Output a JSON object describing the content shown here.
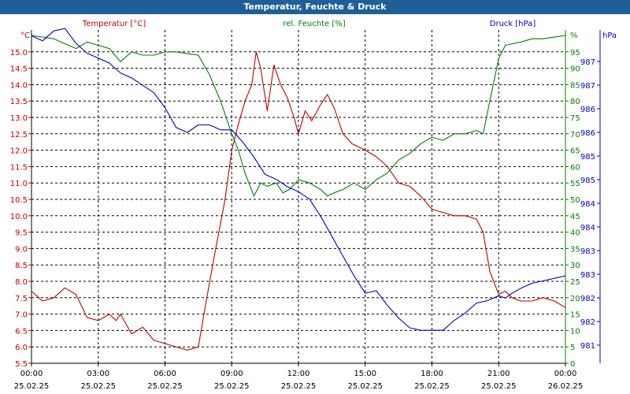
{
  "window": {
    "title": "Temperatur, Feuchte & Druck"
  },
  "colors": {
    "temperature": "#c00000",
    "humidity": "#008000",
    "pressure": "#0000c0",
    "titlebar": "#1f5f98",
    "grid": "#000000"
  },
  "chart_data": {
    "type": "line",
    "title": "Temperatur, Feuchte & Druck",
    "grid": true,
    "axes": {
      "temperature": {
        "label": "Temperatur [°C]",
        "unit": "°C",
        "range": [
          5.5,
          15.5
        ],
        "ticks": [
          "15.0",
          "14.5",
          "14.0",
          "13.5",
          "13.0",
          "12.5",
          "12.0",
          "11.5",
          "11.0",
          "10.5",
          "10.0",
          "9.5",
          "9.0",
          "8.5",
          "8.0",
          "7.5",
          "7.0",
          "6.5",
          "6.0",
          "5.5"
        ]
      },
      "humidity": {
        "label": "rel. Feuchte [%]",
        "unit": "%",
        "range": [
          0,
          100
        ],
        "ticks": [
          "95",
          "90",
          "85",
          "80",
          "75",
          "70",
          "65",
          "60",
          "55",
          "50",
          "45",
          "40",
          "35",
          "30",
          "25",
          "20",
          "15",
          "10",
          "5",
          "0"
        ]
      },
      "pressure": {
        "label": "Druck [hPa]",
        "unit": "hPa",
        "ticks": [
          "987",
          "987",
          "986",
          "986",
          "985",
          "985",
          "984",
          "984",
          "983",
          "983",
          "982",
          "982",
          "981"
        ]
      }
    },
    "x_ticks": [
      {
        "time": "00:00",
        "date": "25.02.25"
      },
      {
        "time": "03:00",
        "date": "25.02.25"
      },
      {
        "time": "06:00",
        "date": "25.02.25"
      },
      {
        "time": "09:00",
        "date": "25.02.25"
      },
      {
        "time": "12:00",
        "date": "25.02.25"
      },
      {
        "time": "15:00",
        "date": "25.02.25"
      },
      {
        "time": "18:00",
        "date": "25.02.25"
      },
      {
        "time": "21:00",
        "date": "25.02.25"
      },
      {
        "time": "00:00",
        "date": "26.02.25"
      }
    ],
    "series": [
      {
        "name": "Temperatur [°C]",
        "axis": "temperature",
        "points": [
          [
            0,
            7.7
          ],
          [
            0.5,
            7.4
          ],
          [
            1,
            7.5
          ],
          [
            1.5,
            7.8
          ],
          [
            2,
            7.6
          ],
          [
            2.5,
            6.9
          ],
          [
            3,
            6.8
          ],
          [
            3.5,
            7.0
          ],
          [
            3.8,
            6.8
          ],
          [
            4,
            7.0
          ],
          [
            4.5,
            6.4
          ],
          [
            5,
            6.6
          ],
          [
            5.5,
            6.2
          ],
          [
            6,
            6.1
          ],
          [
            7,
            5.9
          ],
          [
            7.5,
            6.0
          ],
          [
            7.8,
            7.2
          ],
          [
            8.2,
            8.7
          ],
          [
            8.7,
            10.5
          ],
          [
            9,
            12.0
          ],
          [
            9.3,
            12.8
          ],
          [
            9.6,
            13.5
          ],
          [
            9.9,
            14.0
          ],
          [
            10.1,
            15.0
          ],
          [
            10.3,
            14.5
          ],
          [
            10.6,
            13.2
          ],
          [
            10.9,
            14.6
          ],
          [
            11.2,
            14.0
          ],
          [
            11.5,
            13.6
          ],
          [
            11.8,
            13.0
          ],
          [
            12,
            12.5
          ],
          [
            12.3,
            13.2
          ],
          [
            12.6,
            12.9
          ],
          [
            13,
            13.4
          ],
          [
            13.3,
            13.7
          ],
          [
            13.6,
            13.3
          ],
          [
            14,
            12.5
          ],
          [
            14.4,
            12.2
          ],
          [
            15,
            12.0
          ],
          [
            15.5,
            11.8
          ],
          [
            16,
            11.5
          ],
          [
            16.5,
            11.0
          ],
          [
            17,
            10.9
          ],
          [
            17.5,
            10.6
          ],
          [
            18,
            10.2
          ],
          [
            18.5,
            10.1
          ],
          [
            19,
            10.0
          ],
          [
            19.5,
            10.0
          ],
          [
            20,
            9.9
          ],
          [
            20.3,
            9.5
          ],
          [
            20.6,
            8.3
          ],
          [
            21,
            7.6
          ],
          [
            21.3,
            7.7
          ],
          [
            21.6,
            7.5
          ],
          [
            22,
            7.4
          ],
          [
            22.5,
            7.4
          ],
          [
            23,
            7.5
          ],
          [
            23.5,
            7.4
          ],
          [
            24,
            7.2
          ]
        ]
      },
      {
        "name": "rel. Feuchte [%]",
        "axis": "humidity",
        "points": [
          [
            0,
            100
          ],
          [
            1,
            99
          ],
          [
            2,
            96
          ],
          [
            2.5,
            98
          ],
          [
            3,
            97
          ],
          [
            3.5,
            96
          ],
          [
            4,
            92
          ],
          [
            4.5,
            95
          ],
          [
            5,
            94
          ],
          [
            5.5,
            94
          ],
          [
            6,
            95
          ],
          [
            6.5,
            95
          ],
          [
            7,
            94.5
          ],
          [
            7.5,
            94
          ],
          [
            8,
            88
          ],
          [
            8.5,
            80
          ],
          [
            9,
            70
          ],
          [
            9.3,
            65
          ],
          [
            9.6,
            58
          ],
          [
            10,
            51
          ],
          [
            10.3,
            55
          ],
          [
            10.6,
            54
          ],
          [
            11,
            55
          ],
          [
            11.3,
            52
          ],
          [
            11.6,
            53
          ],
          [
            12,
            56
          ],
          [
            12.5,
            55
          ],
          [
            13,
            53
          ],
          [
            13.3,
            51
          ],
          [
            13.6,
            52
          ],
          [
            14,
            53
          ],
          [
            14.5,
            55
          ],
          [
            15,
            53
          ],
          [
            15.5,
            56
          ],
          [
            16,
            58
          ],
          [
            16.5,
            62
          ],
          [
            17,
            64
          ],
          [
            17.5,
            67
          ],
          [
            18,
            69
          ],
          [
            18.5,
            68
          ],
          [
            19,
            70
          ],
          [
            19.5,
            70
          ],
          [
            20,
            71
          ],
          [
            20.3,
            70
          ],
          [
            20.6,
            80
          ],
          [
            21,
            93
          ],
          [
            21.3,
            97
          ],
          [
            22,
            98
          ],
          [
            22.5,
            99
          ],
          [
            23,
            99
          ],
          [
            23.5,
            99.5
          ],
          [
            24,
            100
          ]
        ]
      },
      {
        "name": "Druck [hPa]",
        "axis": "pressure",
        "points": [
          [
            0,
            987.25
          ],
          [
            0.5,
            987.15
          ],
          [
            1,
            987.35
          ],
          [
            1.5,
            987.4
          ],
          [
            2,
            987.1
          ],
          [
            2.5,
            986.9
          ],
          [
            3,
            986.8
          ],
          [
            3.5,
            986.7
          ],
          [
            4,
            986.5
          ],
          [
            4.5,
            986.4
          ],
          [
            5,
            986.25
          ],
          [
            5.5,
            986.1
          ],
          [
            6,
            985.8
          ],
          [
            6.5,
            985.4
          ],
          [
            7,
            985.3
          ],
          [
            7.5,
            985.45
          ],
          [
            8,
            985.45
          ],
          [
            8.5,
            985.35
          ],
          [
            9,
            985.35
          ],
          [
            9.5,
            985.1
          ],
          [
            10,
            984.8
          ],
          [
            10.5,
            984.45
          ],
          [
            11,
            984.35
          ],
          [
            11.5,
            984.2
          ],
          [
            12,
            984.1
          ],
          [
            12.5,
            983.95
          ],
          [
            13,
            983.6
          ],
          [
            13.5,
            983.2
          ],
          [
            14,
            982.8
          ],
          [
            14.5,
            982.4
          ],
          [
            15,
            982.05
          ],
          [
            15.5,
            982.1
          ],
          [
            16,
            981.8
          ],
          [
            16.5,
            981.55
          ],
          [
            17,
            981.35
          ],
          [
            17.5,
            981.3
          ],
          [
            18,
            981.3
          ],
          [
            18.5,
            981.3
          ],
          [
            19,
            981.5
          ],
          [
            19.5,
            981.65
          ],
          [
            20,
            981.85
          ],
          [
            20.5,
            981.9
          ],
          [
            21,
            982.0
          ],
          [
            21.3,
            981.95
          ],
          [
            21.6,
            982.05
          ],
          [
            22,
            982.15
          ],
          [
            22.5,
            982.25
          ],
          [
            23,
            982.3
          ],
          [
            23.5,
            982.35
          ],
          [
            24,
            982.4
          ]
        ]
      }
    ]
  }
}
